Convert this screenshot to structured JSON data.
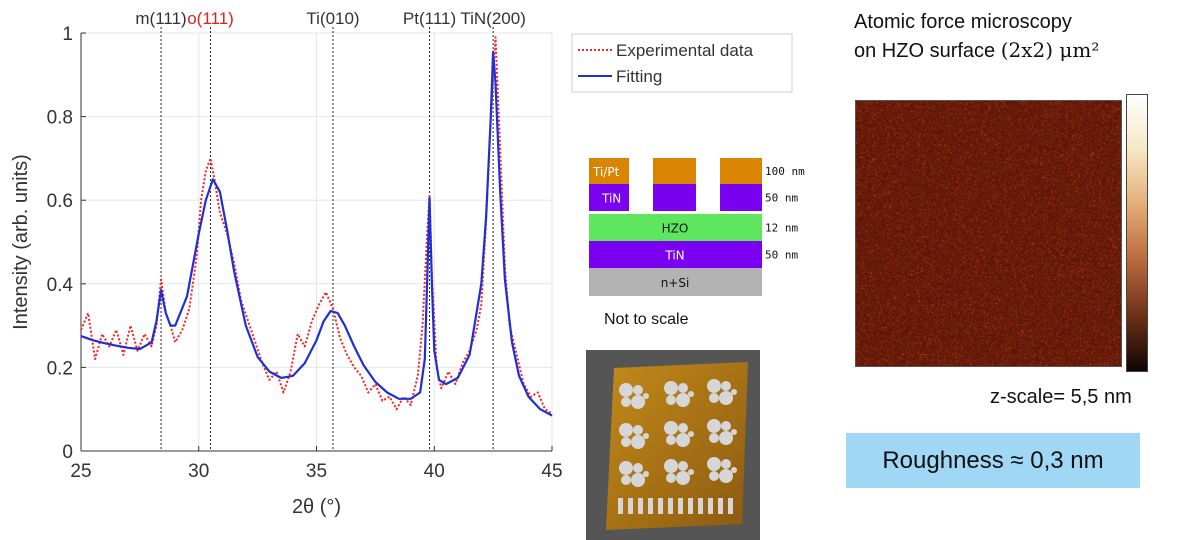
{
  "chart_data": {
    "type": "line",
    "title": "",
    "xlabel": "2θ (°)",
    "ylabel": "Intensity (arb. units)",
    "xlim": [
      25,
      45
    ],
    "ylim": [
      0,
      1
    ],
    "xticks": [
      "25",
      "30",
      "35",
      "40",
      "45"
    ],
    "yticks": [
      "0",
      "0.2",
      "0.4",
      "0.6",
      "0.8",
      "1"
    ],
    "grid": true,
    "legend_position": "top-right",
    "peak_lines": [
      {
        "label": "m(111)",
        "x": 28.4,
        "color": "#333333"
      },
      {
        "label": "o(111)",
        "x": 30.5,
        "color": "#e02020"
      },
      {
        "label": "Ti(010)",
        "x": 35.7,
        "color": "#333333"
      },
      {
        "label": "Pt(111)",
        "x": 39.8,
        "color": "#333333"
      },
      {
        "label": "TiN(200)",
        "x": 42.5,
        "color": "#333333"
      }
    ],
    "series": [
      {
        "name": "Experimental data",
        "style": "dotted",
        "color": "#ff2020",
        "x": [
          25.0,
          25.3,
          25.6,
          25.9,
          26.2,
          26.5,
          26.8,
          27.1,
          27.4,
          27.7,
          28.0,
          28.2,
          28.4,
          28.6,
          28.8,
          29.0,
          29.3,
          29.6,
          29.9,
          30.1,
          30.3,
          30.5,
          30.7,
          30.9,
          31.2,
          31.5,
          31.8,
          32.1,
          32.4,
          32.7,
          33.0,
          33.3,
          33.6,
          33.9,
          34.2,
          34.5,
          34.8,
          35.1,
          35.4,
          35.7,
          36.0,
          36.3,
          36.6,
          36.9,
          37.2,
          37.5,
          37.8,
          38.1,
          38.4,
          38.7,
          39.0,
          39.3,
          39.5,
          39.7,
          39.8,
          39.9,
          40.1,
          40.3,
          40.6,
          40.9,
          41.2,
          41.5,
          41.8,
          42.0,
          42.2,
          42.4,
          42.6,
          42.8,
          43.0,
          43.2,
          43.5,
          43.8,
          44.1,
          44.4,
          44.7,
          45.0
        ],
        "values": [
          0.29,
          0.33,
          0.22,
          0.28,
          0.25,
          0.29,
          0.23,
          0.3,
          0.24,
          0.28,
          0.25,
          0.3,
          0.41,
          0.33,
          0.3,
          0.26,
          0.29,
          0.34,
          0.46,
          0.6,
          0.67,
          0.7,
          0.64,
          0.57,
          0.52,
          0.45,
          0.36,
          0.31,
          0.26,
          0.21,
          0.17,
          0.19,
          0.14,
          0.19,
          0.28,
          0.25,
          0.31,
          0.35,
          0.38,
          0.34,
          0.27,
          0.23,
          0.2,
          0.18,
          0.14,
          0.16,
          0.12,
          0.13,
          0.1,
          0.13,
          0.11,
          0.18,
          0.3,
          0.52,
          0.61,
          0.42,
          0.2,
          0.15,
          0.19,
          0.16,
          0.21,
          0.24,
          0.29,
          0.35,
          0.55,
          0.8,
          0.99,
          0.72,
          0.44,
          0.3,
          0.23,
          0.16,
          0.13,
          0.14,
          0.1,
          0.09
        ]
      },
      {
        "name": "Fitting",
        "style": "solid",
        "color": "#1f2fd6",
        "x": [
          25.0,
          25.5,
          26.0,
          26.5,
          27.0,
          27.5,
          28.0,
          28.2,
          28.4,
          28.6,
          28.8,
          29.0,
          29.5,
          30.0,
          30.3,
          30.6,
          30.9,
          31.2,
          31.5,
          32.0,
          32.5,
          33.0,
          33.5,
          34.0,
          34.5,
          35.0,
          35.3,
          35.6,
          35.9,
          36.2,
          36.6,
          37.0,
          37.5,
          38.0,
          38.5,
          39.0,
          39.4,
          39.6,
          39.7,
          39.8,
          39.9,
          40.0,
          40.2,
          40.5,
          41.0,
          41.5,
          42.0,
          42.2,
          42.4,
          42.5,
          42.6,
          42.8,
          43.0,
          43.3,
          43.6,
          44.0,
          44.5,
          45.0
        ],
        "values": [
          0.275,
          0.265,
          0.258,
          0.252,
          0.247,
          0.244,
          0.26,
          0.31,
          0.385,
          0.33,
          0.3,
          0.3,
          0.37,
          0.52,
          0.6,
          0.65,
          0.62,
          0.53,
          0.43,
          0.3,
          0.225,
          0.19,
          0.175,
          0.18,
          0.21,
          0.265,
          0.31,
          0.335,
          0.33,
          0.3,
          0.25,
          0.205,
          0.165,
          0.14,
          0.125,
          0.125,
          0.14,
          0.22,
          0.41,
          0.605,
          0.4,
          0.24,
          0.17,
          0.16,
          0.175,
          0.23,
          0.4,
          0.56,
          0.8,
          0.955,
          0.88,
          0.62,
          0.41,
          0.26,
          0.18,
          0.13,
          0.1,
          0.085
        ]
      }
    ]
  },
  "stack": {
    "layers": [
      {
        "label": "Ti/Pt",
        "thickness": "100 nm",
        "color": "#d98503"
      },
      {
        "label": "TiN",
        "thickness": "50 nm",
        "color": "#7b00f0"
      },
      {
        "label": "HZO",
        "thickness": "12 nm",
        "color": "#5ee75e"
      },
      {
        "label": "TiN",
        "thickness": "50 nm",
        "color": "#7b00f0"
      },
      {
        "label": "n+Si",
        "thickness": "",
        "color": "#b3b3b3"
      }
    ],
    "note": "Not to scale"
  },
  "afm": {
    "title_line1": "Atomic force microscopy",
    "title_line2": "on HZO surface",
    "title_units": "(2x2) μm²",
    "z_scale": "z-scale= 5,5 nm",
    "roughness": "Roughness ≈ 0,3 nm",
    "image_color": "#7a2a10"
  }
}
